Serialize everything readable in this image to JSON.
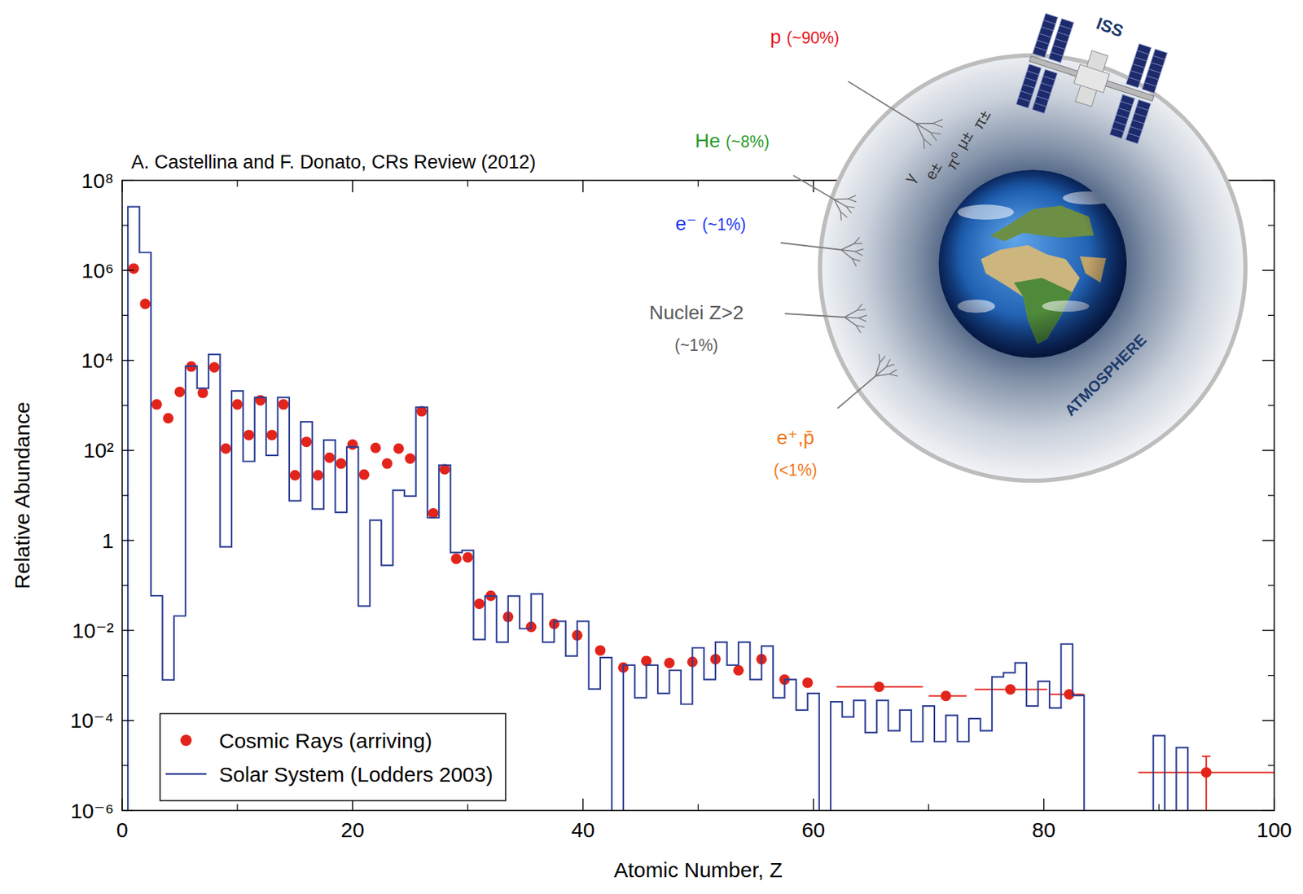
{
  "chart_data": {
    "type": "scatter",
    "annotations": [
      "A. Castellina and F. Donato, CRs Review (2012)"
    ],
    "x_label": "Atomic Number, Z",
    "y_label": "Relative Abundance",
    "xlim": [
      0,
      100
    ],
    "xticks": [
      0,
      20,
      40,
      60,
      80,
      100
    ],
    "ylim": [
      1e-06,
      100000000
    ],
    "yticks": [
      {
        "value": 1e-06,
        "label": "10⁻⁶"
      },
      {
        "value": 0.0001,
        "label": "10⁻⁴"
      },
      {
        "value": 0.01,
        "label": "10⁻²"
      },
      1,
      {
        "value": 100,
        "label": "10²"
      },
      {
        "value": 10000,
        "label": "10⁴"
      },
      {
        "value": 1000000,
        "label": "10⁶"
      },
      {
        "value": 100000000,
        "label": "10⁸"
      }
    ],
    "log": "y",
    "grid": false,
    "legend": "lower left",
    "series": [
      {
        "name": "Cosmic Rays (arriving)",
        "type": "scatter",
        "marker": "circle",
        "color": "#e3241b",
        "x": [
          1,
          2,
          3,
          4,
          5,
          6,
          7,
          8,
          9,
          10,
          11,
          12,
          13,
          14,
          15,
          16,
          17,
          18,
          19,
          20,
          21,
          22,
          23,
          24,
          25,
          26,
          27,
          28,
          29,
          30,
          31,
          32,
          33.5,
          35.5,
          37.5,
          39.5,
          41.5,
          43.5,
          45.5,
          47.5,
          49.5,
          51.5,
          53.5,
          55.5,
          57.5,
          59.5,
          65.7,
          71.5,
          77.1,
          82.2,
          94.1
        ],
        "values": [
          1100000,
          180000,
          1050,
          520,
          2000,
          7300,
          1900,
          7000,
          110,
          1050,
          220,
          1300,
          220,
          1050,
          28,
          155,
          28,
          69,
          51,
          135,
          29,
          114,
          51,
          110,
          66,
          740,
          4,
          38,
          0.39,
          0.42,
          0.039,
          0.059,
          0.02,
          0.012,
          0.014,
          0.0078,
          0.0036,
          0.0015,
          0.0021,
          0.0019,
          0.002,
          0.0023,
          0.0013,
          0.0023,
          0.00081,
          0.00069,
          0.00056,
          0.00035,
          0.00049,
          0.00038,
          7e-06
        ],
        "xerr": [
          null,
          null,
          null,
          null,
          null,
          null,
          null,
          null,
          null,
          null,
          null,
          null,
          null,
          null,
          null,
          null,
          null,
          null,
          null,
          null,
          null,
          null,
          null,
          null,
          null,
          null,
          null,
          null,
          null,
          null,
          null,
          null,
          null,
          null,
          null,
          null,
          null,
          null,
          null,
          null,
          null,
          null,
          null,
          null,
          null,
          null,
          [
            62,
            69.5
          ],
          [
            70,
            73.3
          ],
          [
            74,
            80.3
          ],
          [
            80.5,
            83.5
          ],
          [
            88.2,
            100
          ]
        ],
        "yerr": [
          null,
          null,
          null,
          null,
          null,
          null,
          null,
          null,
          null,
          null,
          null,
          null,
          null,
          null,
          null,
          null,
          null,
          null,
          null,
          null,
          null,
          null,
          null,
          null,
          null,
          null,
          null,
          null,
          null,
          null,
          null,
          null,
          null,
          null,
          null,
          null,
          null,
          null,
          null,
          null,
          null,
          null,
          null,
          null,
          null,
          null,
          null,
          null,
          null,
          null,
          [
            1e-06,
            1.6e-05
          ]
        ]
      },
      {
        "name": "Solar System (Lodders 2003)",
        "type": "step",
        "line_style": "solid",
        "color": "#2c3e94",
        "x": [
          1,
          2,
          3,
          4,
          5,
          6,
          7,
          8,
          9,
          10,
          11,
          12,
          13,
          14,
          15,
          16,
          17,
          18,
          19,
          20,
          21,
          22,
          23,
          24,
          25,
          26,
          27,
          28,
          29,
          30,
          31,
          32,
          33,
          34,
          35,
          36,
          37,
          38,
          39,
          40,
          41,
          42,
          43,
          44,
          45,
          46,
          47,
          48,
          49,
          50,
          51,
          52,
          53,
          54,
          55,
          56,
          57,
          58,
          59,
          60,
          61,
          62,
          63,
          64,
          65,
          66,
          67,
          68,
          69,
          70,
          71,
          72,
          73,
          74,
          75,
          76,
          77,
          78,
          79,
          80,
          81,
          82,
          83,
          84,
          85,
          86,
          87,
          88,
          89,
          90,
          91,
          92
        ],
        "values": [
          26000000,
          2500000,
          0.059,
          0.0008,
          0.021,
          7400,
          2400,
          13500,
          0.72,
          2100,
          57,
          1500,
          78,
          1500,
          7.6,
          430,
          5,
          170,
          4.2,
          120,
          0.035,
          2.8,
          0.28,
          13,
          9.7,
          910,
          3.2,
          47,
          0.54,
          0.6,
          0.0063,
          0.058,
          0.0055,
          0.058,
          0.011,
          0.065,
          0.0055,
          0.016,
          0.0027,
          0.016,
          0.0005,
          0.0025,
          null,
          0.0017,
          0.00032,
          0.0017,
          0.0004,
          0.0013,
          0.00023,
          0.0041,
          0.00081,
          0.0055,
          0.0017,
          0.0055,
          0.00081,
          0.0045,
          0.00032,
          0.00081,
          0.00017,
          0.0004,
          null,
          0.00026,
          0.00012,
          0.00028,
          5.4e-05,
          0.00028,
          5.9e-05,
          0.00017,
          3.4e-05,
          0.00021,
          3.4e-05,
          0.00013,
          3.4e-05,
          0.00011,
          5.9e-05,
          0.00093,
          0.00115,
          0.0019,
          0.00021,
          0.00074,
          0.00019,
          0.005,
          0.00036,
          null,
          null,
          null,
          null,
          null,
          null,
          4.6e-05,
          null,
          2.5e-05
        ]
      }
    ]
  },
  "diagram": {
    "particles": [
      {
        "label": "p",
        "fraction": "(~90%)",
        "color": "#e8141c"
      },
      {
        "label": "He",
        "fraction": "(~8%)",
        "color": "#2a9a2a"
      },
      {
        "label": "e⁻",
        "fraction": "(~1%)",
        "color": "#1a35f0"
      },
      {
        "label": "Nuclei Z>2",
        "fraction": "(~1%)",
        "color": "#5a5a5a"
      },
      {
        "label": "e⁺,p̄",
        "fraction": "(<1%)",
        "color": "#f07818"
      }
    ],
    "secondaries": [
      "γ",
      "e±",
      "π⁰",
      "μ±",
      "π±"
    ],
    "station": "ISS",
    "layer": "ATMOSPHERE"
  }
}
